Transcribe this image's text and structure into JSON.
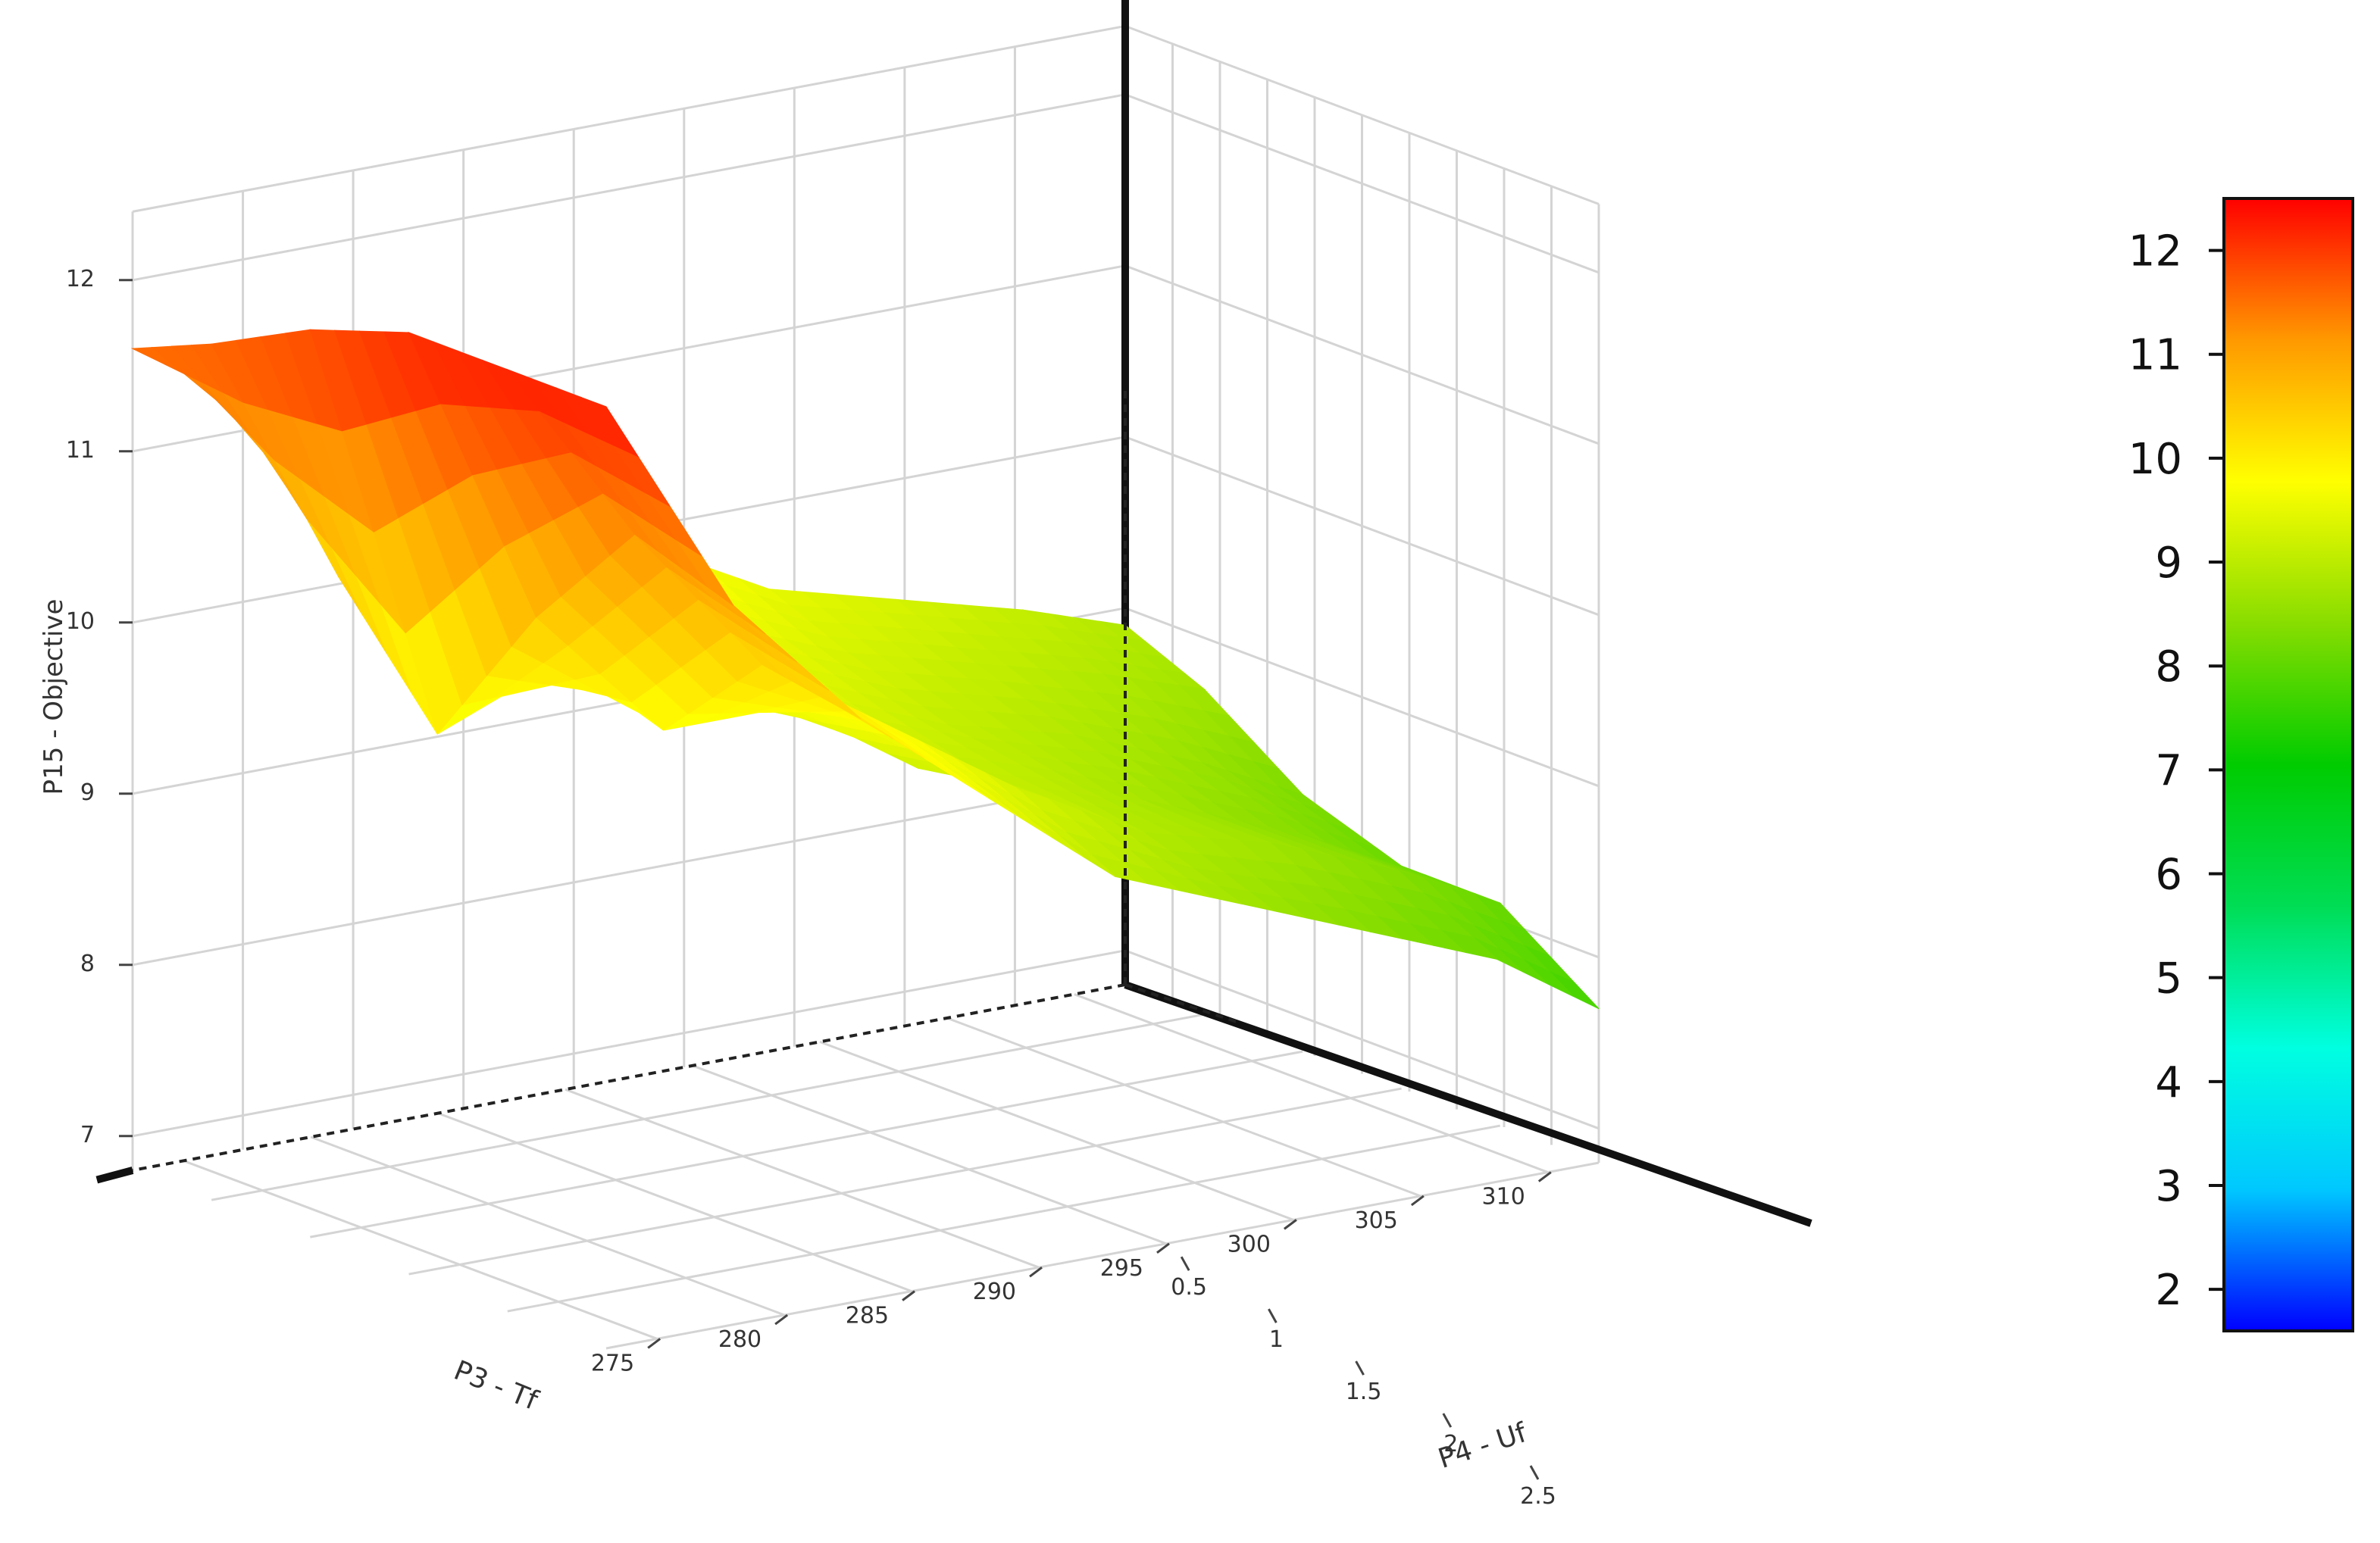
{
  "chart_data": {
    "type": "surface",
    "zlabel": "P15 - Objective",
    "xlabel": "P3 - Tf",
    "ylabel": "P4 - Uf",
    "x_ticks": [
      "275",
      "280",
      "285",
      "290",
      "295",
      "300",
      "305",
      "310"
    ],
    "y_ticks": [
      "0.5",
      "1",
      "1.5",
      "2",
      "2.5"
    ],
    "z_ticks": [
      "7",
      "8",
      "9",
      "10",
      "11",
      "12"
    ],
    "xlim": [
      273,
      312
    ],
    "ylim": [
      0.1,
      2.5
    ],
    "zlim": [
      6.8,
      12.4
    ],
    "colorbar": {
      "ticks": [
        "2",
        "3",
        "4",
        "5",
        "6",
        "7",
        "8",
        "9",
        "10",
        "11",
        "12"
      ],
      "range": [
        1.6,
        12.5
      ],
      "colors": [
        "#0000ff",
        "#00c8ff",
        "#00ffe0",
        "#00dd55",
        "#00cc00",
        "#88dd00",
        "#ffff00",
        "#ff9900",
        "#ff0000"
      ]
    },
    "x_grid": [
      273,
      278,
      283,
      288,
      293,
      298,
      303,
      308,
      312
    ],
    "y_grid": [
      0.1,
      0.5,
      1.0,
      1.5,
      2.0,
      2.5
    ],
    "z_surface": [
      [
        11.6,
        11.1,
        10.7,
        10.2,
        9.9,
        9.5,
        9.3,
        9.1,
        8.9
      ],
      [
        11.8,
        10.3,
        10.2,
        9.8,
        9.6,
        9.3,
        9.1,
        8.9,
        8.7
      ],
      [
        12.1,
        9.6,
        9.9,
        9.5,
        9.4,
        9.1,
        8.9,
        8.6,
        8.3
      ],
      [
        12.3,
        10.5,
        9.7,
        9.7,
        9.2,
        9.0,
        8.7,
        8.4,
        8.1
      ],
      [
        12.3,
        11.2,
        10.3,
        9.8,
        9.3,
        8.9,
        8.7,
        8.4,
        8.1
      ],
      [
        12.3,
        11.0,
        10.2,
        9.6,
        9.0,
        8.7,
        8.4,
        8.1,
        7.7
      ]
    ]
  }
}
